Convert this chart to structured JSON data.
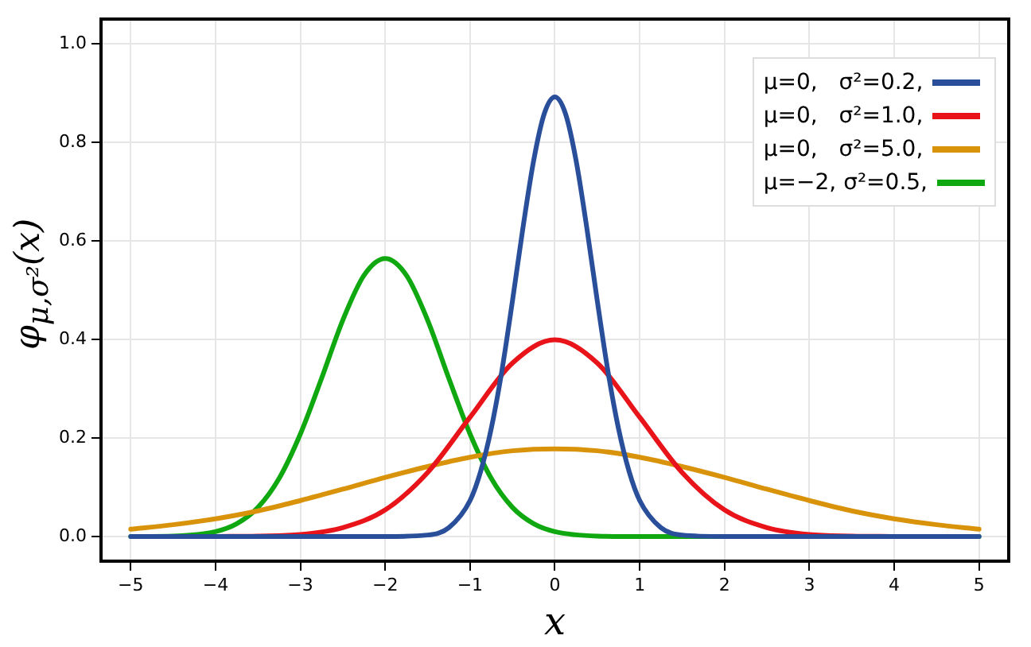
{
  "chart_data": {
    "type": "line",
    "xlabel": "x",
    "ylabel": "φ$_{μ,σ²}$(x)",
    "xlim": [
      -5.35,
      5.35
    ],
    "xticks": [
      {
        "value": -5,
        "label": "−5"
      },
      {
        "value": -4,
        "label": "−4"
      },
      {
        "value": -3,
        "label": "−3"
      },
      {
        "value": -2,
        "label": "−2"
      },
      {
        "value": -1,
        "label": "−1"
      },
      0,
      1,
      2,
      3,
      4,
      5
    ],
    "ylim": [
      -0.05,
      1.05
    ],
    "yticks": [
      {
        "value": 0,
        "label": "0.0"
      },
      0.2,
      0.4,
      0.6,
      0.8,
      {
        "value": 1,
        "label": "1.0"
      }
    ],
    "grid": true,
    "legend": "top right",
    "marker": "none",
    "line_style": "solid",
    "series": [
      {
        "name": "μ=0,   σ²=0.2,",
        "color": "#2a4f9a",
        "x": [
          -5,
          -2,
          -1.5,
          -1.25,
          -1,
          -0.875,
          -0.75,
          -0.625,
          -0.5,
          -0.375,
          -0.25,
          -0.125,
          0,
          0.125,
          0.25,
          0.375,
          0.5,
          0.625,
          0.75,
          0.875,
          1,
          1.25,
          1.5,
          2,
          5
        ],
        "values": [
          0,
          0,
          0.003,
          0.018,
          0.073,
          0.132,
          0.219,
          0.336,
          0.478,
          0.628,
          0.763,
          0.858,
          0.892,
          0.858,
          0.763,
          0.628,
          0.478,
          0.336,
          0.219,
          0.132,
          0.073,
          0.018,
          0.003,
          0,
          0
        ]
      },
      {
        "name": "μ=0,   σ²=1.0,",
        "color": "#e8141a",
        "x": [
          -4,
          -3.5,
          -3,
          -2.5,
          -2,
          -1.5,
          -1,
          -0.5,
          0,
          0.5,
          1,
          1.5,
          2,
          2.5,
          3,
          3.5,
          4
        ],
        "values": [
          0,
          0.001,
          0.004,
          0.018,
          0.054,
          0.13,
          0.242,
          0.352,
          0.399,
          0.352,
          0.242,
          0.13,
          0.054,
          0.018,
          0.004,
          0.001,
          0
        ]
      },
      {
        "name": "μ=0,   σ²=5.0,",
        "color": "#d9930a",
        "x": [
          -5,
          -4.5,
          -4,
          -3.5,
          -3,
          -2.5,
          -2,
          -1.5,
          -1,
          -0.5,
          0,
          0.5,
          1,
          1.5,
          2,
          2.5,
          3,
          3.5,
          4,
          4.5,
          5
        ],
        "values": [
          0.015,
          0.024,
          0.036,
          0.052,
          0.073,
          0.096,
          0.12,
          0.142,
          0.161,
          0.174,
          0.178,
          0.174,
          0.161,
          0.142,
          0.12,
          0.096,
          0.073,
          0.052,
          0.036,
          0.024,
          0.015
        ]
      },
      {
        "name": "μ=−2, σ²=0.5,",
        "color": "#10a810",
        "x": [
          -5,
          -4.5,
          -4,
          -3.75,
          -3.5,
          -3.25,
          -3,
          -2.75,
          -2.5,
          -2.25,
          -2,
          -1.75,
          -1.5,
          -1.25,
          -1,
          -0.75,
          -0.5,
          -0.25,
          0,
          0.5,
          1,
          5
        ],
        "values": [
          0,
          0.001,
          0.01,
          0.026,
          0.059,
          0.118,
          0.208,
          0.321,
          0.439,
          0.53,
          0.564,
          0.53,
          0.439,
          0.321,
          0.208,
          0.118,
          0.059,
          0.026,
          0.01,
          0.001,
          0,
          0
        ]
      }
    ]
  }
}
